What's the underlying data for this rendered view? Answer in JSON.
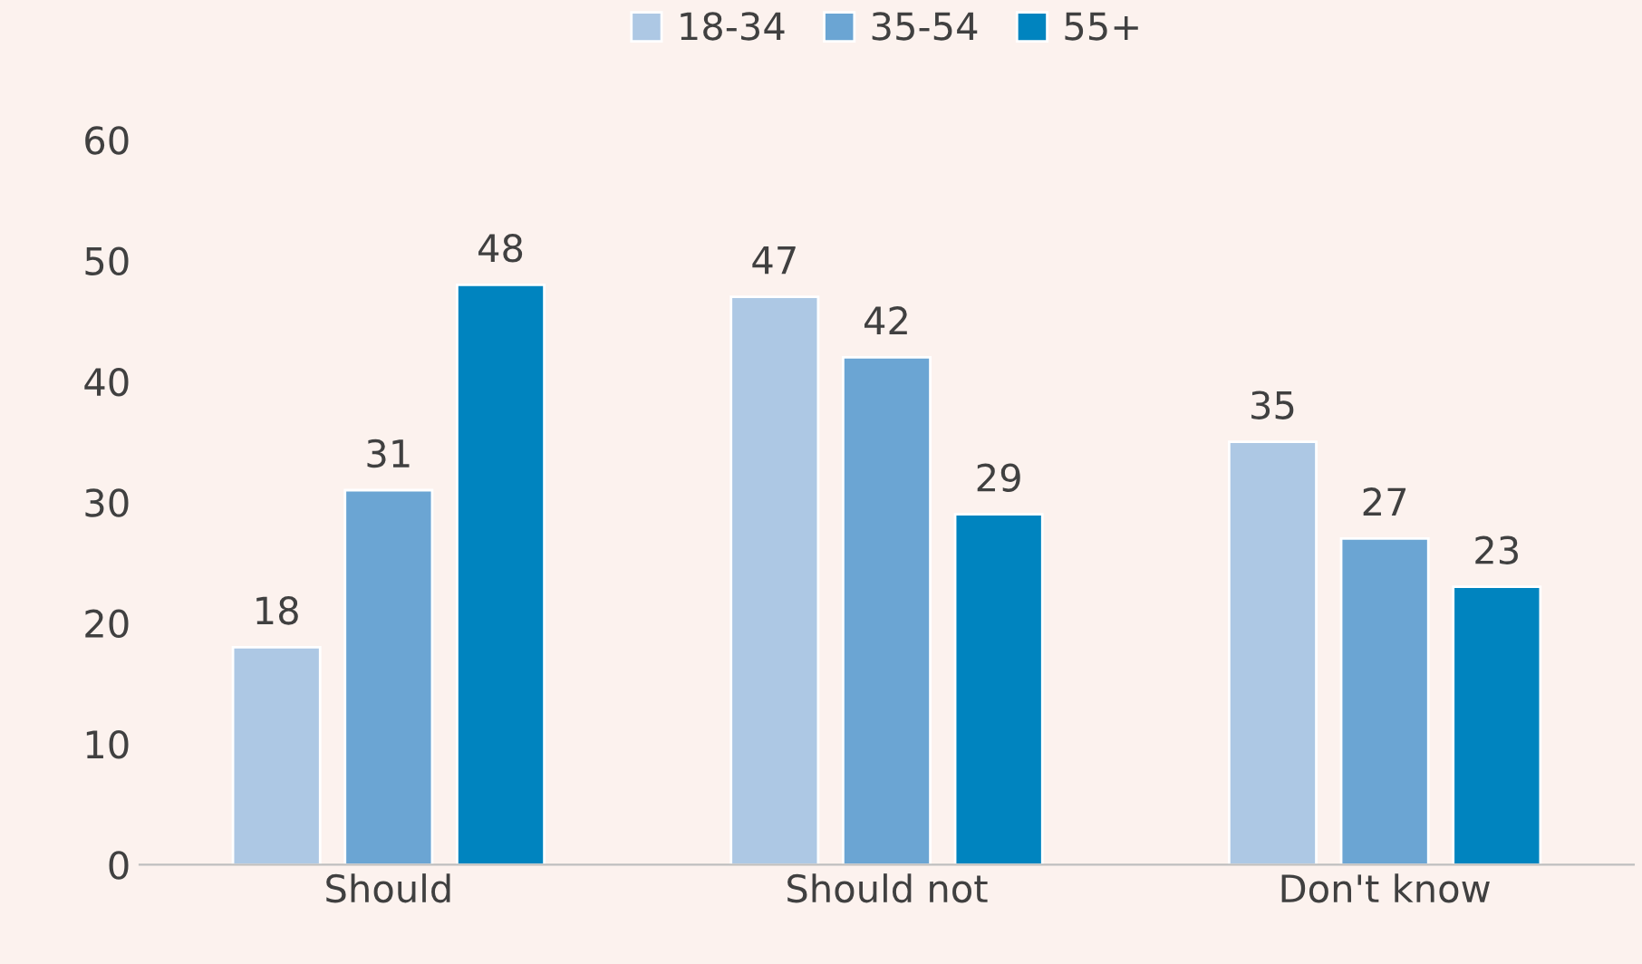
{
  "chart_data": {
    "type": "bar",
    "categories": [
      "Should",
      "Should not",
      "Don't know"
    ],
    "series": [
      {
        "name": "18-34",
        "color": "#adc8e4",
        "values": [
          18,
          47,
          35
        ]
      },
      {
        "name": "35-54",
        "color": "#6ba5d3",
        "values": [
          31,
          42,
          27
        ]
      },
      {
        "name": "55+",
        "color": "#0084bf",
        "values": [
          48,
          29,
          23
        ]
      }
    ],
    "ylim": [
      0,
      60
    ],
    "yticks": [
      0,
      10,
      20,
      30,
      40,
      50,
      60
    ],
    "data_labels": true,
    "grid": false,
    "legend": "top"
  }
}
